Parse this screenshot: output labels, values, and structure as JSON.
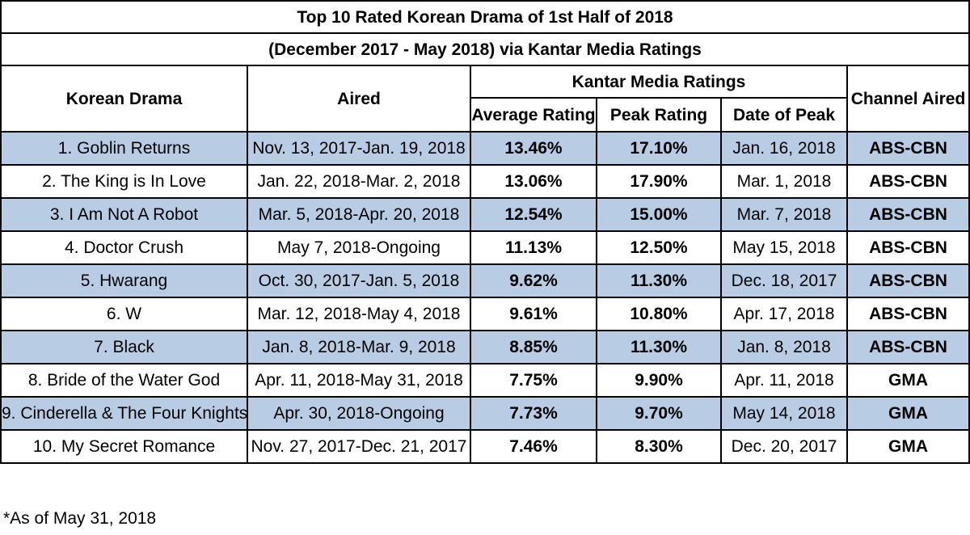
{
  "title": "Top 10 Rated Korean Drama of 1st Half of 2018",
  "subtitle": "(December 2017 - May 2018) via Kantar Media Ratings",
  "headers": {
    "drama": "Korean Drama",
    "aired": "Aired",
    "group": "Kantar Media Ratings",
    "average": "Average Rating",
    "peak": "Peak Rating",
    "date_of_peak": "Date of Peak",
    "channel": "Channel Aired"
  },
  "rows": [
    {
      "drama": "1. Goblin Returns",
      "aired": "Nov. 13, 2017-Jan. 19, 2018",
      "average": "13.46%",
      "peak": "17.10%",
      "date": "Jan. 16, 2018",
      "channel": "ABS-CBN"
    },
    {
      "drama": "2. The King is In Love",
      "aired": "Jan. 22, 2018-Mar. 2, 2018",
      "average": "13.06%",
      "peak": "17.90%",
      "date": "Mar. 1, 2018",
      "channel": "ABS-CBN"
    },
    {
      "drama": "3. I Am Not A Robot",
      "aired": "Mar. 5, 2018-Apr. 20, 2018",
      "average": "12.54%",
      "peak": "15.00%",
      "date": "Mar. 7, 2018",
      "channel": "ABS-CBN"
    },
    {
      "drama": "4. Doctor Crush",
      "aired": "May 7, 2018-Ongoing",
      "average": "11.13%",
      "peak": "12.50%",
      "date": "May 15, 2018",
      "channel": "ABS-CBN"
    },
    {
      "drama": "5. Hwarang",
      "aired": "Oct. 30, 2017-Jan. 5, 2018",
      "average": "9.62%",
      "peak": "11.30%",
      "date": "Dec. 18, 2017",
      "channel": "ABS-CBN"
    },
    {
      "drama": "6. W",
      "aired": "Mar. 12, 2018-May 4, 2018",
      "average": "9.61%",
      "peak": "10.80%",
      "date": "Apr. 17, 2018",
      "channel": "ABS-CBN"
    },
    {
      "drama": "7. Black",
      "aired": "Jan. 8, 2018-Mar. 9, 2018",
      "average": "8.85%",
      "peak": "11.30%",
      "date": "Jan. 8, 2018",
      "channel": "ABS-CBN"
    },
    {
      "drama": "8. Bride of the Water God",
      "aired": "Apr. 11, 2018-May 31, 2018",
      "average": "7.75%",
      "peak": "9.90%",
      "date": "Apr. 11, 2018",
      "channel": "GMA"
    },
    {
      "drama": "9. Cinderella & The Four Knights",
      "aired": "Apr. 30, 2018-Ongoing",
      "average": "7.73%",
      "peak": "9.70%",
      "date": "May 14, 2018",
      "channel": "GMA"
    },
    {
      "drama": "10. My Secret Romance",
      "aired": "Nov. 27, 2017-Dec. 21, 2017",
      "average": "7.46%",
      "peak": "8.30%",
      "date": "Dec. 20, 2017",
      "channel": "GMA"
    }
  ],
  "footnote": "*As of May 31, 2018",
  "colors": {
    "shaded_row": "#b8cce4",
    "border": "#000000"
  }
}
